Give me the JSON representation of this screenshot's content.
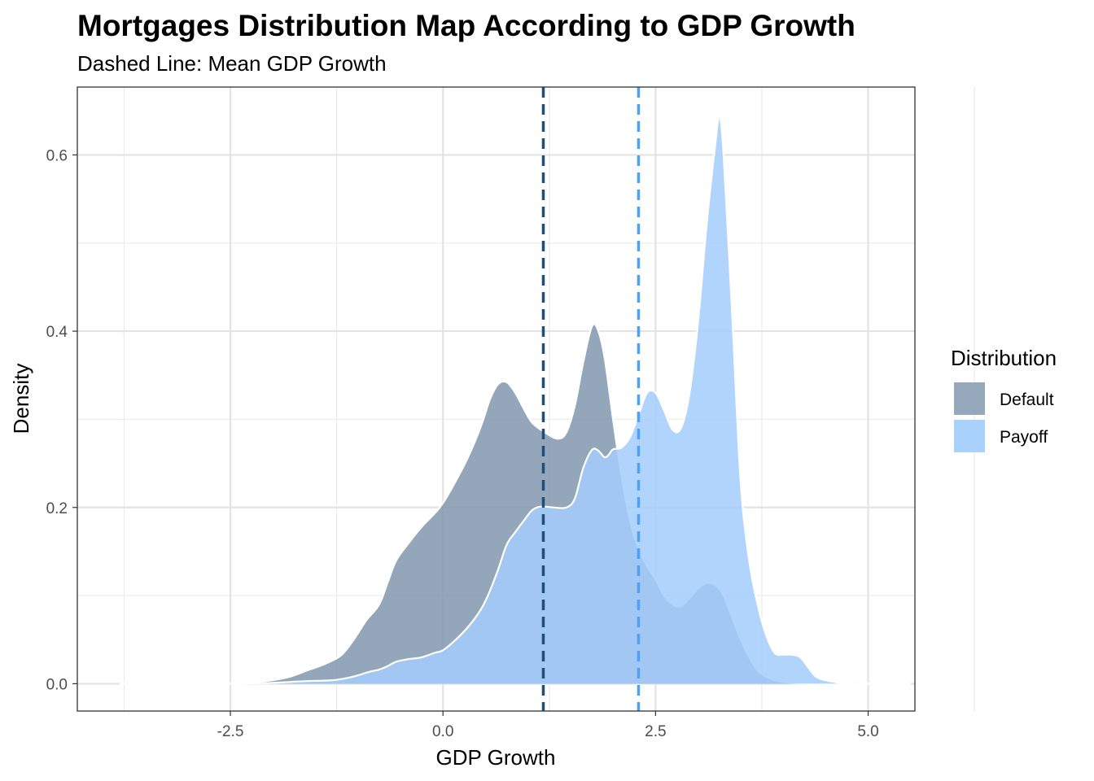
{
  "chart_data": {
    "type": "area",
    "title": "Mortgages Distribution Map According to GDP Growth",
    "subtitle": "Dashed Line: Mean GDP Growth",
    "xlabel": "GDP Growth",
    "ylabel": "Density",
    "xlim": [
      -4.3,
      5.55
    ],
    "ylim": [
      -0.031,
      0.677
    ],
    "x_ticks": [
      -2.5,
      0.0,
      2.5,
      5.0
    ],
    "x_tick_labels": [
      "-2.5",
      "0.0",
      "2.5",
      "5.0"
    ],
    "y_ticks": [
      0.0,
      0.2,
      0.4,
      0.6
    ],
    "y_tick_labels": [
      "0.0",
      "0.2",
      "0.4",
      "0.6"
    ],
    "grid": true,
    "legend": {
      "title": "Distribution",
      "position": "right"
    },
    "series": [
      {
        "name": "Default",
        "color": "#8096ae",
        "mean": 1.18,
        "mean_line_color": "#1f4e7a",
        "points": [
          [
            -3.8,
            0.0
          ],
          [
            -3.0,
            0.0
          ],
          [
            -2.5,
            0.0
          ],
          [
            -2.2,
            0.002
          ],
          [
            -2.0,
            0.004
          ],
          [
            -1.8,
            0.008
          ],
          [
            -1.6,
            0.015
          ],
          [
            -1.4,
            0.022
          ],
          [
            -1.2,
            0.032
          ],
          [
            -1.05,
            0.05
          ],
          [
            -0.9,
            0.072
          ],
          [
            -0.75,
            0.09
          ],
          [
            -0.65,
            0.115
          ],
          [
            -0.55,
            0.14
          ],
          [
            -0.4,
            0.16
          ],
          [
            -0.25,
            0.178
          ],
          [
            -0.1,
            0.193
          ],
          [
            0.0,
            0.205
          ],
          [
            0.15,
            0.23
          ],
          [
            0.3,
            0.258
          ],
          [
            0.45,
            0.293
          ],
          [
            0.55,
            0.322
          ],
          [
            0.65,
            0.34
          ],
          [
            0.75,
            0.342
          ],
          [
            0.85,
            0.33
          ],
          [
            0.95,
            0.312
          ],
          [
            1.05,
            0.296
          ],
          [
            1.2,
            0.285
          ],
          [
            1.35,
            0.278
          ],
          [
            1.45,
            0.285
          ],
          [
            1.55,
            0.315
          ],
          [
            1.65,
            0.365
          ],
          [
            1.75,
            0.405
          ],
          [
            1.82,
            0.402
          ],
          [
            1.9,
            0.37
          ],
          [
            2.0,
            0.3
          ],
          [
            2.1,
            0.235
          ],
          [
            2.2,
            0.185
          ],
          [
            2.3,
            0.153
          ],
          [
            2.4,
            0.133
          ],
          [
            2.5,
            0.118
          ],
          [
            2.6,
            0.1
          ],
          [
            2.7,
            0.09
          ],
          [
            2.8,
            0.088
          ],
          [
            2.9,
            0.097
          ],
          [
            3.0,
            0.108
          ],
          [
            3.1,
            0.114
          ],
          [
            3.2,
            0.112
          ],
          [
            3.3,
            0.1
          ],
          [
            3.4,
            0.075
          ],
          [
            3.5,
            0.05
          ],
          [
            3.6,
            0.03
          ],
          [
            3.7,
            0.015
          ],
          [
            3.8,
            0.008
          ],
          [
            3.9,
            0.004
          ],
          [
            4.0,
            0.002
          ],
          [
            4.3,
            0.0
          ],
          [
            5.0,
            0.0
          ],
          [
            5.5,
            0.0
          ]
        ]
      },
      {
        "name": "Payoff",
        "color": "#a3cdfb",
        "mean": 2.3,
        "mean_line_color": "#4da2f8",
        "points": [
          [
            -3.8,
            0.0
          ],
          [
            -3.0,
            0.0
          ],
          [
            -2.5,
            0.0
          ],
          [
            -2.2,
            0.0005
          ],
          [
            -2.0,
            0.001
          ],
          [
            -1.8,
            0.002
          ],
          [
            -1.6,
            0.003
          ],
          [
            -1.3,
            0.004
          ],
          [
            -1.1,
            0.007
          ],
          [
            -0.95,
            0.011
          ],
          [
            -0.85,
            0.014
          ],
          [
            -0.75,
            0.016
          ],
          [
            -0.65,
            0.02
          ],
          [
            -0.55,
            0.025
          ],
          [
            -0.4,
            0.028
          ],
          [
            -0.25,
            0.03
          ],
          [
            -0.1,
            0.035
          ],
          [
            0.0,
            0.038
          ],
          [
            0.15,
            0.05
          ],
          [
            0.3,
            0.065
          ],
          [
            0.45,
            0.085
          ],
          [
            0.55,
            0.105
          ],
          [
            0.65,
            0.13
          ],
          [
            0.75,
            0.158
          ],
          [
            0.85,
            0.172
          ],
          [
            0.95,
            0.185
          ],
          [
            1.05,
            0.197
          ],
          [
            1.15,
            0.201
          ],
          [
            1.3,
            0.2
          ],
          [
            1.45,
            0.2
          ],
          [
            1.55,
            0.21
          ],
          [
            1.65,
            0.245
          ],
          [
            1.75,
            0.265
          ],
          [
            1.82,
            0.265
          ],
          [
            1.9,
            0.257
          ],
          [
            1.95,
            0.26
          ],
          [
            2.0,
            0.266
          ],
          [
            2.1,
            0.268
          ],
          [
            2.2,
            0.28
          ],
          [
            2.3,
            0.305
          ],
          [
            2.4,
            0.33
          ],
          [
            2.5,
            0.33
          ],
          [
            2.6,
            0.31
          ],
          [
            2.7,
            0.288
          ],
          [
            2.8,
            0.29
          ],
          [
            2.9,
            0.33
          ],
          [
            3.0,
            0.41
          ],
          [
            3.1,
            0.52
          ],
          [
            3.2,
            0.61
          ],
          [
            3.25,
            0.643
          ],
          [
            3.3,
            0.6
          ],
          [
            3.4,
            0.42
          ],
          [
            3.5,
            0.23
          ],
          [
            3.6,
            0.14
          ],
          [
            3.7,
            0.09
          ],
          [
            3.8,
            0.055
          ],
          [
            3.9,
            0.035
          ],
          [
            4.0,
            0.033
          ],
          [
            4.1,
            0.033
          ],
          [
            4.2,
            0.03
          ],
          [
            4.3,
            0.018
          ],
          [
            4.4,
            0.007
          ],
          [
            4.6,
            0.002
          ],
          [
            4.8,
            0.0
          ],
          [
            5.0,
            0.0
          ],
          [
            5.5,
            0.0
          ]
        ]
      }
    ]
  }
}
